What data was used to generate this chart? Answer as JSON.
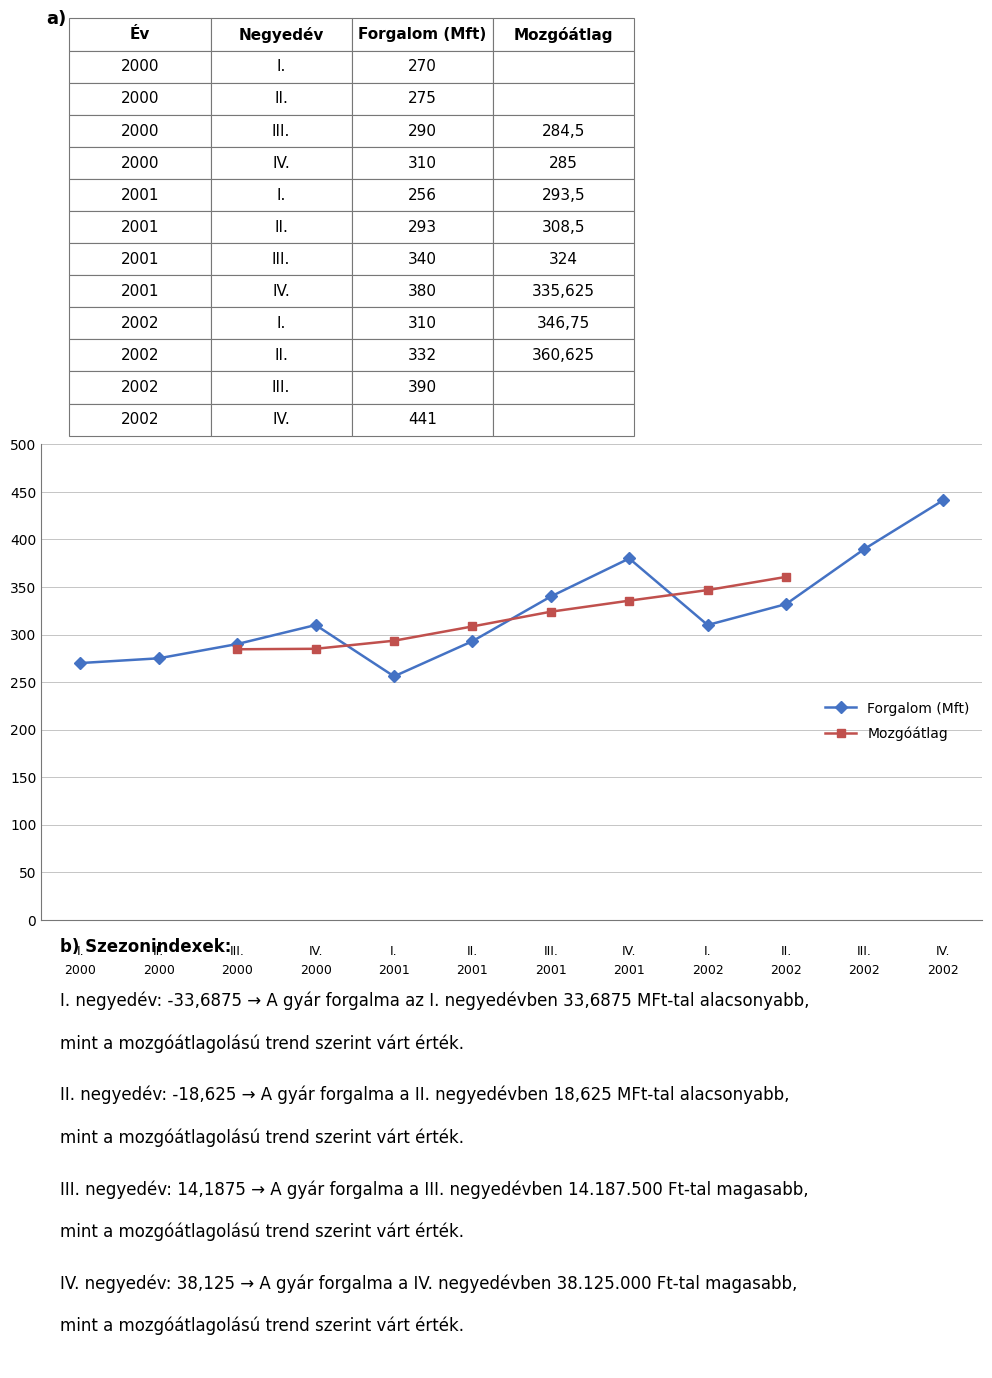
{
  "table_headers": [
    "Év",
    "Negyedév",
    "Forgalom (Mft)",
    "Mozgóátlag"
  ],
  "table_data": [
    [
      "2000",
      "I.",
      "270",
      ""
    ],
    [
      "2000",
      "II.",
      "275",
      ""
    ],
    [
      "2000",
      "III.",
      "290",
      "284,5"
    ],
    [
      "2000",
      "IV.",
      "310",
      "285"
    ],
    [
      "2001",
      "I.",
      "256",
      "293,5"
    ],
    [
      "2001",
      "II.",
      "293",
      "308,5"
    ],
    [
      "2001",
      "III.",
      "340",
      "324"
    ],
    [
      "2001",
      "IV.",
      "380",
      "335,625"
    ],
    [
      "2002",
      "I.",
      "310",
      "346,75"
    ],
    [
      "2002",
      "II.",
      "332",
      "360,625"
    ],
    [
      "2002",
      "III.",
      "390",
      ""
    ],
    [
      "2002",
      "IV.",
      "441",
      ""
    ]
  ],
  "forgalom_values": [
    270,
    275,
    290,
    310,
    256,
    293,
    340,
    380,
    310,
    332,
    390,
    441
  ],
  "mozgoatlag_values": [
    null,
    null,
    284.5,
    285,
    293.5,
    308.5,
    324,
    335.625,
    346.75,
    360.625,
    null,
    null
  ],
  "x_labels_row1": [
    "I.",
    "II.",
    "III.",
    "IV.",
    "I.",
    "II.",
    "III.",
    "IV.",
    "I.",
    "II.",
    "III.",
    "IV."
  ],
  "x_labels_row2": [
    "2000",
    "2000",
    "2000",
    "2000",
    "2001",
    "2001",
    "2001",
    "2001",
    "2002",
    "2002",
    "2002",
    "2002"
  ],
  "y_ticks": [
    0,
    50,
    100,
    150,
    200,
    250,
    300,
    350,
    400,
    450,
    500
  ],
  "forgalom_color": "#4472C4",
  "mozgoatlag_color": "#C0504D",
  "legend_forgalom": "Forgalom (Mft)",
  "legend_mozgoatlag": "Mozgóátlag",
  "section_a_label": "a)",
  "section_b_label": "b) Szezonindexek:",
  "text_paragraphs": [
    {
      "bold_part": "I. negyedév: -33,6875",
      "arrow": " → ",
      "normal_part": "A gyár forgalma az I. negyedévben 33,6875 MFt-tal alacsonyabb,",
      "line2": "mint a mozgóátlagolású trend szerint várt érték."
    },
    {
      "bold_part": "II. negyedév: -18,625",
      "arrow": " → ",
      "normal_part": "A gyár forgalma a II. negyedévben 18,625 MFt-tal alacsonyabb,",
      "line2": "mint a mozgóátlagolású trend szerint várt érték."
    },
    {
      "bold_part": "III. negyedév: 14,1875",
      "arrow": " → ",
      "normal_part": "A gyár forgalma a III. negyedévben 14.187.500 Ft-tal magasabb,",
      "line2": "mint a mozgóátlagolású trend szerint várt érték."
    },
    {
      "bold_part": "IV. negyedév: 38,125",
      "arrow": " → ",
      "normal_part": "A gyár forgalma a IV. negyedévben 38.125.000 Ft-tal magasabb,",
      "line2": "mint a mozgóátlagolású trend szerint várt érték."
    }
  ],
  "background_color": "#ffffff",
  "font_size_table": 11,
  "font_size_axis": 9,
  "font_size_legend": 10,
  "font_size_text": 12
}
